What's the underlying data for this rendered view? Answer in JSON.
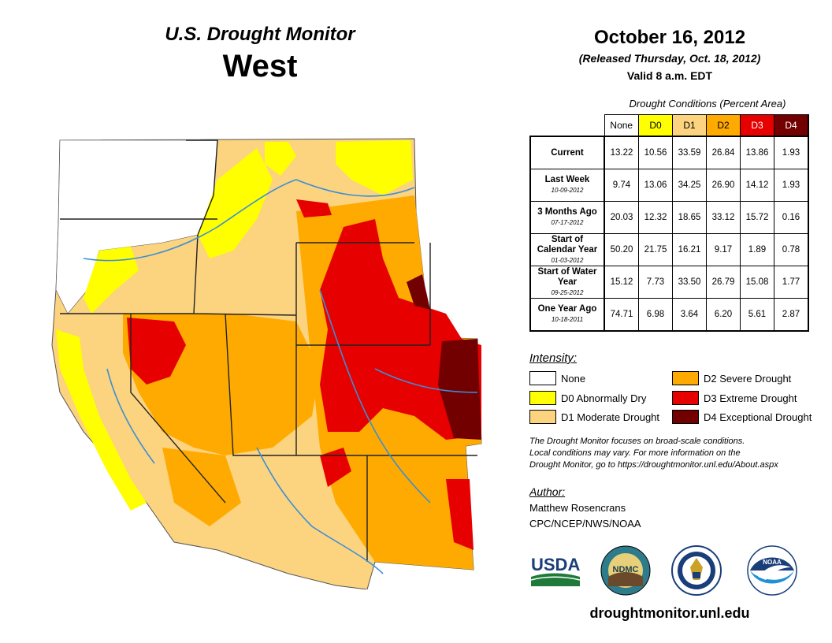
{
  "header": {
    "title": "U.S. Drought Monitor",
    "region": "West",
    "date": "October 16, 2012",
    "released": "(Released Thursday, Oct. 18, 2012)",
    "valid": "Valid 8 a.m. EDT"
  },
  "table": {
    "caption": "Drought Conditions (Percent Area)",
    "columns": [
      "None",
      "D0",
      "D1",
      "D2",
      "D3",
      "D4"
    ],
    "rows": [
      {
        "label": "Current",
        "date": "",
        "values": [
          "13.22",
          "10.56",
          "33.59",
          "26.84",
          "13.86",
          "1.93"
        ]
      },
      {
        "label": "Last Week",
        "date": "10-09-2012",
        "values": [
          "9.74",
          "13.06",
          "34.25",
          "26.90",
          "14.12",
          "1.93"
        ]
      },
      {
        "label": "3 Months Ago",
        "date": "07-17-2012",
        "values": [
          "20.03",
          "12.32",
          "18.65",
          "33.12",
          "15.72",
          "0.16"
        ]
      },
      {
        "label": "Start of Calendar Year",
        "date": "01-03-2012",
        "values": [
          "50.20",
          "21.75",
          "16.21",
          "9.17",
          "1.89",
          "0.78"
        ]
      },
      {
        "label": "Start of Water Year",
        "date": "09-25-2012",
        "values": [
          "15.12",
          "7.73",
          "33.50",
          "26.79",
          "15.08",
          "1.77"
        ]
      },
      {
        "label": "One Year Ago",
        "date": "10-18-2011",
        "values": [
          "74.71",
          "6.98",
          "3.64",
          "6.20",
          "5.61",
          "2.87"
        ]
      }
    ]
  },
  "legend": {
    "title": "Intensity:",
    "items": [
      {
        "label": "None",
        "color": "#ffffff"
      },
      {
        "label": "D0 Abnormally Dry",
        "color": "#ffff00"
      },
      {
        "label": "D1 Moderate Drought",
        "color": "#fcd37f"
      },
      {
        "label": "D2 Severe Drought",
        "color": "#ffaa00"
      },
      {
        "label": "D3 Extreme Drought",
        "color": "#e60000"
      },
      {
        "label": "D4 Exceptional Drought",
        "color": "#730000"
      }
    ]
  },
  "note": {
    "line1": "The Drought Monitor focuses on broad-scale conditions.",
    "line2": "Local conditions may vary. For more information on the",
    "line3": "Drought Monitor, go to https://droughtmonitor.unl.edu/About.aspx"
  },
  "author": {
    "title": "Author:",
    "name": "Matthew Rosencrans",
    "org": "CPC/NCEP/NWS/NOAA"
  },
  "logos": {
    "usda": "USDA",
    "ndmc": "NDMC",
    "commerce": "commerce-seal",
    "noaa": "NOAA"
  },
  "url": "droughtmonitor.unl.edu"
}
